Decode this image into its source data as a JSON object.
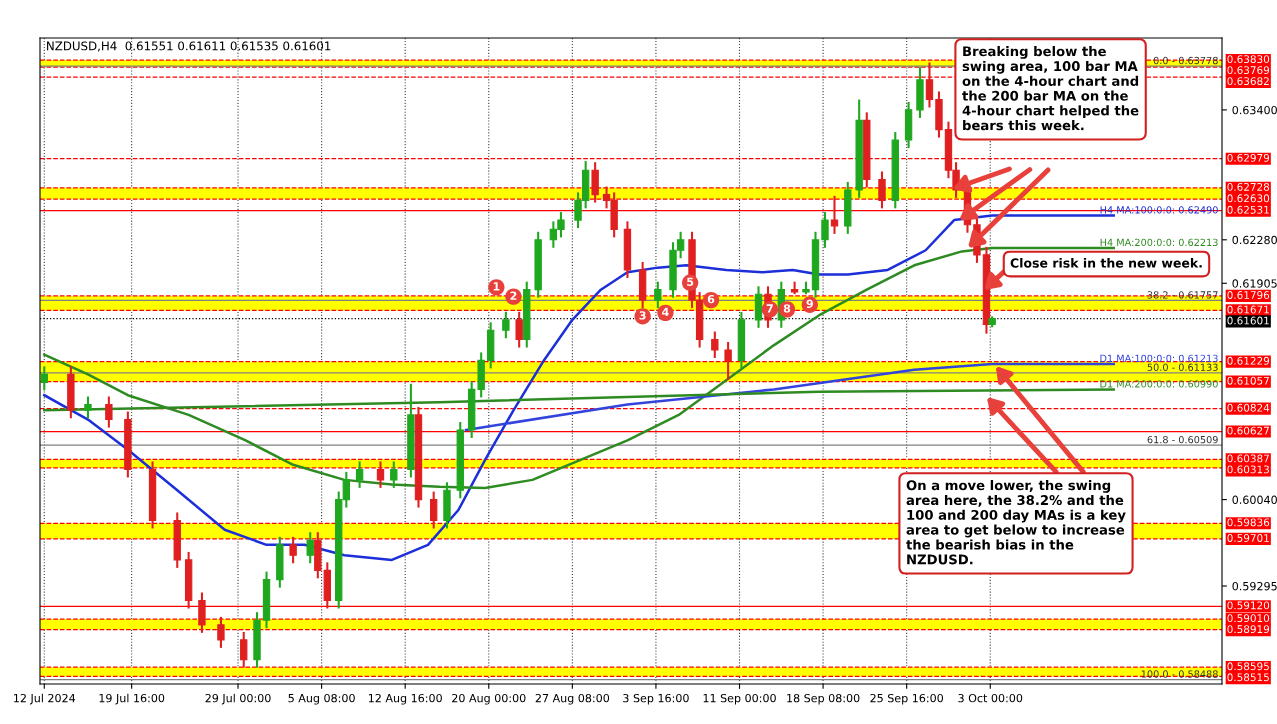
{
  "chart_data": {
    "type": "candlestick",
    "title": "NZDUSD,H4  0.61551 0.61611 0.61535 0.61601",
    "x": [
      "2024-07-12T00:00",
      "2024-07-14T08:00",
      "2024-07-15T20:00",
      "2024-07-17T16:00",
      "2024-07-19T08:00",
      "2024-07-21T12:00",
      "2024-07-23T16:00",
      "2024-07-24T16:00",
      "2024-07-25T20:00",
      "2024-07-27T12:00",
      "2024-07-29T12:00",
      "2024-07-30T16:00",
      "2024-07-31T12:00",
      "2024-08-01T16:00",
      "2024-08-02T20:00",
      "2024-08-04T08:00",
      "2024-08-05T00:00",
      "2024-08-05T20:00",
      "2024-08-06T20:00",
      "2024-08-07T12:00",
      "2024-08-08T16:00",
      "2024-08-10T12:00",
      "2024-08-11T16:00",
      "2024-08-13T04:00",
      "2024-08-13T20:00",
      "2024-08-15T04:00",
      "2024-08-16T08:00",
      "2024-08-17T12:00",
      "2024-08-18T12:00",
      "2024-08-19T08:00",
      "2024-08-20T04:00",
      "2024-08-21T12:00",
      "2024-08-22T16:00",
      "2024-08-23T08:00",
      "2024-08-24T08:00",
      "2024-08-25T16:00",
      "2024-08-26T08:00",
      "2024-08-27T20:00",
      "2024-08-28T12:00",
      "2024-08-29T08:00",
      "2024-08-30T08:00",
      "2024-08-31T00:00",
      "2024-09-01T04:00",
      "2024-09-02T12:00",
      "2024-09-03T20:00",
      "2024-09-05T04:00",
      "2024-09-05T20:00",
      "2024-09-06T20:00",
      "2024-09-07T12:00",
      "2024-09-08T20:00",
      "2024-09-10T00:00",
      "2024-09-11T04:00",
      "2024-09-12T16:00",
      "2024-09-13T12:00",
      "2024-09-14T16:00",
      "2024-09-15T20:00",
      "2024-09-16T20:00",
      "2024-09-17T16:00",
      "2024-09-18T12:00",
      "2024-09-19T08:00",
      "2024-09-20T12:00",
      "2024-09-21T12:00",
      "2024-09-22T04:00",
      "2024-09-23T12:00",
      "2024-09-24T16:00",
      "2024-09-25T20:00",
      "2024-09-26T20:00",
      "2024-09-27T16:00",
      "2024-09-28T12:00",
      "2024-09-29T08:00",
      "2024-09-30T00:00",
      "2024-10-01T00:00",
      "2024-10-01T20:00",
      "2024-10-02T16:00",
      "2024-10-03T04:00"
    ],
    "ohlc": [
      [
        0.6105,
        0.6118,
        0.6099,
        0.6112
      ],
      [
        0.6112,
        0.6118,
        0.6075,
        0.6081
      ],
      [
        0.6081,
        0.6092,
        0.6075,
        0.6086
      ],
      [
        0.6086,
        0.6092,
        0.6067,
        0.6073
      ],
      [
        0.6073,
        0.6079,
        0.6024,
        0.603
      ],
      [
        0.603,
        0.6036,
        0.598,
        0.5986
      ],
      [
        0.5986,
        0.5992,
        0.5946,
        0.5952
      ],
      [
        0.5952,
        0.5958,
        0.5911,
        0.5917
      ],
      [
        0.5917,
        0.5923,
        0.589,
        0.5896
      ],
      [
        0.5896,
        0.5902,
        0.5877,
        0.5883
      ],
      [
        0.5883,
        0.5889,
        0.586,
        0.5866
      ],
      [
        0.5866,
        0.5906,
        0.586,
        0.59
      ],
      [
        0.59,
        0.5941,
        0.5894,
        0.5935
      ],
      [
        0.5935,
        0.5971,
        0.5929,
        0.5965
      ],
      [
        0.5965,
        0.5971,
        0.595,
        0.5956
      ],
      [
        0.5956,
        0.5975,
        0.595,
        0.5969
      ],
      [
        0.5969,
        0.5975,
        0.5937,
        0.5943
      ],
      [
        0.5943,
        0.5949,
        0.5911,
        0.5917
      ],
      [
        0.5917,
        0.601,
        0.5911,
        0.6004
      ],
      [
        0.6004,
        0.6027,
        0.5998,
        0.6021
      ],
      [
        0.6021,
        0.6036,
        0.6015,
        0.603
      ],
      [
        0.603,
        0.6036,
        0.6015,
        0.6021
      ],
      [
        0.6021,
        0.6036,
        0.6015,
        0.603
      ],
      [
        0.603,
        0.6103,
        0.6024,
        0.6077
      ],
      [
        0.6077,
        0.6083,
        0.5998,
        0.6004
      ],
      [
        0.6004,
        0.601,
        0.598,
        0.5986
      ],
      [
        0.5986,
        0.6018,
        0.598,
        0.6012
      ],
      [
        0.6012,
        0.607,
        0.6006,
        0.6064
      ],
      [
        0.6064,
        0.6105,
        0.6058,
        0.6099
      ],
      [
        0.6099,
        0.613,
        0.6093,
        0.6124
      ],
      [
        0.6124,
        0.6156,
        0.6118,
        0.615
      ],
      [
        0.615,
        0.6165,
        0.6144,
        0.6159
      ],
      [
        0.6159,
        0.6165,
        0.6136,
        0.6142
      ],
      [
        0.6142,
        0.6191,
        0.6136,
        0.6185
      ],
      [
        0.6185,
        0.6234,
        0.6179,
        0.6228
      ],
      [
        0.6228,
        0.6243,
        0.6222,
        0.6237
      ],
      [
        0.6237,
        0.6251,
        0.6231,
        0.6245
      ],
      [
        0.6245,
        0.6268,
        0.6239,
        0.6262
      ],
      [
        0.6262,
        0.6295,
        0.6256,
        0.6288
      ],
      [
        0.6288,
        0.6294,
        0.6261,
        0.6267
      ],
      [
        0.6267,
        0.6273,
        0.6256,
        0.6262
      ],
      [
        0.6262,
        0.6268,
        0.6231,
        0.6237
      ],
      [
        0.6237,
        0.6243,
        0.6196,
        0.6202
      ],
      [
        0.6202,
        0.6208,
        0.617,
        0.6176
      ],
      [
        0.6176,
        0.6191,
        0.617,
        0.6185
      ],
      [
        0.6185,
        0.6225,
        0.6179,
        0.6219
      ],
      [
        0.6219,
        0.6234,
        0.6213,
        0.6228
      ],
      [
        0.6228,
        0.6234,
        0.617,
        0.6176
      ],
      [
        0.6176,
        0.6182,
        0.6136,
        0.6142
      ],
      [
        0.6142,
        0.6148,
        0.6127,
        0.6133
      ],
      [
        0.6133,
        0.6139,
        0.6108,
        0.6124
      ],
      [
        0.6124,
        0.6165,
        0.6118,
        0.6159
      ],
      [
        0.6159,
        0.6187,
        0.6153,
        0.6181
      ],
      [
        0.6181,
        0.6187,
        0.6153,
        0.6159
      ],
      [
        0.6159,
        0.6191,
        0.6153,
        0.6185
      ],
      [
        0.6185,
        0.6191,
        0.6182,
        0.6183
      ],
      [
        0.6183,
        0.6191,
        0.6182,
        0.6185
      ],
      [
        0.6185,
        0.6234,
        0.6179,
        0.6228
      ],
      [
        0.6228,
        0.6251,
        0.6222,
        0.6245
      ],
      [
        0.6245,
        0.6265,
        0.6234,
        0.624
      ],
      [
        0.624,
        0.6277,
        0.6234,
        0.6271
      ],
      [
        0.6271,
        0.6348,
        0.6265,
        0.6331
      ],
      [
        0.6331,
        0.6337,
        0.6274,
        0.628
      ],
      [
        0.628,
        0.6286,
        0.6256,
        0.6262
      ],
      [
        0.6262,
        0.632,
        0.6256,
        0.6314
      ],
      [
        0.6314,
        0.6346,
        0.6308,
        0.634
      ],
      [
        0.634,
        0.6376,
        0.6334,
        0.6366
      ],
      [
        0.6366,
        0.638,
        0.6343,
        0.6349
      ],
      [
        0.6349,
        0.6355,
        0.6317,
        0.6323
      ],
      [
        0.6323,
        0.6329,
        0.6282,
        0.6288
      ],
      [
        0.6288,
        0.6294,
        0.6265,
        0.6271
      ],
      [
        0.6271,
        0.6277,
        0.6235,
        0.6241
      ],
      [
        0.6241,
        0.6247,
        0.6209,
        0.6215
      ],
      [
        0.6215,
        0.6221,
        0.6148,
        0.6155
      ],
      [
        0.61551,
        0.61611,
        0.61535,
        0.61601
      ]
    ],
    "series": [
      {
        "name": "H4 MA:100:0:0: 0.62490",
        "type": "line",
        "color": "#1c2fd8",
        "x": [
          "2024-07-12T00:00",
          "2024-07-15T20:00",
          "2024-07-19T08:00",
          "2024-07-23T16:00",
          "2024-07-27T20:00",
          "2024-07-31T12:00",
          "2024-08-03T20:00",
          "2024-08-07T08:00",
          "2024-08-11T12:00",
          "2024-08-14T16:00",
          "2024-08-17T08:00",
          "2024-08-19T16:00",
          "2024-08-22T04:00",
          "2024-08-24T20:00",
          "2024-08-27T08:00",
          "2024-08-29T20:00",
          "2024-09-01T04:00",
          "2024-09-03T20:00",
          "2024-09-06T08:00",
          "2024-09-09T20:00",
          "2024-09-13T00:00",
          "2024-09-15T16:00",
          "2024-09-18T00:00",
          "2024-09-20T12:00",
          "2024-09-24T00:00",
          "2024-09-27T08:00",
          "2024-09-29T20:00",
          "2024-10-03T04:00",
          "2024-10-13T20:00"
        ],
        "values": [
          0.6094,
          0.6073,
          0.6047,
          0.6012,
          0.5978,
          0.5965,
          0.5965,
          0.5956,
          0.5952,
          0.5965,
          0.5995,
          0.6038,
          0.6081,
          0.6124,
          0.6159,
          0.6185,
          0.62,
          0.6204,
          0.6206,
          0.6202,
          0.62,
          0.6202,
          0.6198,
          0.6198,
          0.6202,
          0.6219,
          0.6245,
          0.6249,
          0.6249
        ]
      },
      {
        "name": "H4 MA:200:0:0: 0.62213",
        "type": "line",
        "color": "#2e8b22",
        "x": [
          "2024-07-12T00:00",
          "2024-07-15T20:00",
          "2024-07-19T08:00",
          "2024-07-24T16:00",
          "2024-07-29T16:00",
          "2024-08-02T20:00",
          "2024-08-07T08:00",
          "2024-08-11T12:00",
          "2024-08-15T16:00",
          "2024-08-19T16:00",
          "2024-08-23T20:00",
          "2024-08-28T00:00",
          "2024-09-01T04:00",
          "2024-09-05T16:00",
          "2024-09-09T20:00",
          "2024-09-14T00:00",
          "2024-09-18T00:00",
          "2024-09-22T04:00",
          "2024-09-26T08:00",
          "2024-09-30T12:00",
          "2024-10-03T04:00",
          "2024-10-13T20:00"
        ],
        "values": [
          0.6129,
          0.6112,
          0.6094,
          0.6077,
          0.6055,
          0.6034,
          0.6021,
          0.6017,
          0.6015,
          0.6014,
          0.6021,
          0.6038,
          0.6055,
          0.6077,
          0.6107,
          0.6137,
          0.6163,
          0.6185,
          0.6206,
          0.6218,
          0.6221,
          0.6221
        ]
      },
      {
        "name": "D1 MA:100:0:0: 0.61213",
        "type": "line",
        "color": "#3344dd",
        "x": [
          "2024-08-18T00:00",
          "2024-09-01T04:00",
          "2024-09-14T00:00",
          "2024-09-26T08:00",
          "2024-10-03T04:00",
          "2024-10-13T20:00"
        ],
        "values": [
          0.6064,
          0.6086,
          0.6099,
          0.6116,
          0.6121,
          0.6121
        ]
      },
      {
        "name": "D1 MA:200:0:0: 0.60990",
        "type": "line",
        "color": "#2e8b22",
        "x": [
          "2024-07-12T00:00",
          "2024-08-15T16:00",
          "2024-09-18T00:00",
          "2024-10-13T20:00"
        ],
        "values": [
          0.6081,
          0.6088,
          0.6097,
          0.6099
        ]
      }
    ],
    "xlim": [
      "2024-07-11T15:00",
      "2024-10-23T08:00"
    ],
    "xticks": [
      {
        "value": "2024-07-12",
        "label": "12 Jul 2024"
      },
      {
        "value": "2024-07-19T16:00",
        "label": "19 Jul 16:00"
      },
      {
        "value": "2024-07-29T00:00",
        "label": "29 Jul 00:00"
      },
      {
        "value": "2024-08-05T08:00",
        "label": "5 Aug 08:00"
      },
      {
        "value": "2024-08-12T16:00",
        "label": "12 Aug 16:00"
      },
      {
        "value": "2024-08-20T00:00",
        "label": "20 Aug 00:00"
      },
      {
        "value": "2024-08-27T08:00",
        "label": "27 Aug 08:00"
      },
      {
        "value": "2024-09-03T16:00",
        "label": "3 Sep 16:00"
      },
      {
        "value": "2024-09-11T00:00",
        "label": "11 Sep 00:00"
      },
      {
        "value": "2024-09-18T08:00",
        "label": "18 Sep 08:00"
      },
      {
        "value": "2024-09-25T16:00",
        "label": "25 Sep 16:00"
      },
      {
        "value": "2024-10-03T00:00",
        "label": "3 Oct 00:00"
      }
    ],
    "ylim": [
      0.5845,
      0.6402
    ],
    "yticks": [
      {
        "value": 0.634,
        "label": "0.63400"
      },
      {
        "value": 0.6228,
        "label": "0.62280"
      },
      {
        "value": 0.61905,
        "label": "0.61905"
      },
      {
        "value": 0.6004,
        "label": "0.60040"
      },
      {
        "value": 0.59295,
        "label": "0.59295"
      }
    ],
    "grid": "x",
    "bands": [
      {
        "axis": "y",
        "from": 0.63769,
        "to": 0.6383,
        "color": "#ffff00"
      },
      {
        "axis": "y",
        "from": 0.6263,
        "to": 0.62728,
        "color": "#ffff00"
      },
      {
        "axis": "y",
        "from": 0.61671,
        "to": 0.61796,
        "color": "#ffff00"
      },
      {
        "axis": "y",
        "from": 0.61057,
        "to": 0.61229,
        "color": "#ffff00"
      },
      {
        "axis": "y",
        "from": 0.60313,
        "to": 0.60387,
        "color": "#ffff00"
      },
      {
        "axis": "y",
        "from": 0.59701,
        "to": 0.59836,
        "color": "#ffff00"
      },
      {
        "axis": "y",
        "from": 0.58919,
        "to": 0.5901,
        "color": "#ffff00"
      },
      {
        "axis": "y",
        "from": 0.58515,
        "to": 0.58595,
        "color": "#ffff00"
      }
    ],
    "ref_lines": [
      {
        "axis": "y",
        "value": 0.6383,
        "label": "0.63830",
        "color": "#ff0000",
        "line_style": "dashed"
      },
      {
        "axis": "y",
        "value": 0.63769,
        "label": "0.63769",
        "color": "#ff0000",
        "line_style": "dashed"
      },
      {
        "axis": "y",
        "value": 0.63682,
        "label": "0.63682",
        "color": "#ff0000",
        "line_style": "dashed"
      },
      {
        "axis": "y",
        "value": 0.62979,
        "label": "0.62979",
        "color": "#ff0000",
        "line_style": "dashed"
      },
      {
        "axis": "y",
        "value": 0.62728,
        "label": "0.62728",
        "color": "#ff0000",
        "line_style": "dashed"
      },
      {
        "axis": "y",
        "value": 0.6263,
        "label": "0.62630",
        "color": "#ff0000",
        "line_style": "dashed"
      },
      {
        "axis": "y",
        "value": 0.62531,
        "label": "0.62531",
        "color": "#ff0000",
        "line_style": "solid"
      },
      {
        "axis": "y",
        "value": 0.61796,
        "label": "0.61796",
        "color": "#ff0000",
        "line_style": "dashed"
      },
      {
        "axis": "y",
        "value": 0.61671,
        "label": "0.61671",
        "color": "#ff0000",
        "line_style": "dashed"
      },
      {
        "axis": "y",
        "value": 0.61601,
        "label": "0.61601",
        "color": "#000000",
        "line_style": "dotted"
      },
      {
        "axis": "y",
        "value": 0.61229,
        "label": "0.61229",
        "color": "#ff0000",
        "line_style": "dashed"
      },
      {
        "axis": "y",
        "value": 0.61057,
        "label": "0.61057",
        "color": "#ff0000",
        "line_style": "dashed"
      },
      {
        "axis": "y",
        "value": 0.60824,
        "label": "0.60824",
        "color": "#ff0000",
        "line_style": "dashed"
      },
      {
        "axis": "y",
        "value": 0.60627,
        "label": "0.60627",
        "color": "#ff0000",
        "line_style": "solid"
      },
      {
        "axis": "y",
        "value": 0.60387,
        "label": "0.60387",
        "color": "#ff0000",
        "line_style": "dashed"
      },
      {
        "axis": "y",
        "value": 0.60313,
        "label": "0.60313",
        "color": "#ff0000",
        "line_style": "dashed"
      },
      {
        "axis": "y",
        "value": 0.59836,
        "label": "0.59836",
        "color": "#ff0000",
        "line_style": "dashed"
      },
      {
        "axis": "y",
        "value": 0.59701,
        "label": "0.59701",
        "color": "#ff0000",
        "line_style": "dashed"
      },
      {
        "axis": "y",
        "value": 0.5912,
        "label": "0.59120",
        "color": "#ff0000",
        "line_style": "solid"
      },
      {
        "axis": "y",
        "value": 0.5901,
        "label": "0.59010",
        "color": "#ff0000",
        "line_style": "dashed"
      },
      {
        "axis": "y",
        "value": 0.58919,
        "label": "0.58919",
        "color": "#ff0000",
        "line_style": "dashed"
      },
      {
        "axis": "y",
        "value": 0.58595,
        "label": "0.58595",
        "color": "#ff0000",
        "line_style": "dashed"
      },
      {
        "axis": "y",
        "value": 0.58515,
        "label": "0.58515",
        "color": "#ff0000",
        "line_style": "dashed"
      },
      {
        "axis": "y",
        "value": 0.63778,
        "color": "#808080",
        "line_style": "solid"
      },
      {
        "axis": "y",
        "value": 0.61757,
        "color": "#808080",
        "line_style": "solid"
      },
      {
        "axis": "y",
        "value": 0.61133,
        "color": "#808080",
        "line_style": "solid"
      },
      {
        "axis": "y",
        "value": 0.60509,
        "color": "#808080",
        "line_style": "solid"
      },
      {
        "axis": "y",
        "value": 0.58488,
        "color": "#808080",
        "line_style": "solid"
      }
    ],
    "annotations": [
      "Breaking below the swing area, 100 bar MA on the 4-hour chart and the 200 bar MA on the 4-hour chart helped the bears this week.",
      "Close risk in the new week.",
      {
        "text": "On a move lower, the swing area here, the 38.2% and the 100 and 200 day MAs is a key area to get below to increase the bearish bias in the NZDUSD.",
        "x": "2024-10-03T08:00",
        "y": 0.6121
      },
      {
        "text": "0.0 - 0.63778",
        "y": 0.63778
      },
      {
        "text": "38.2 - 0.61757",
        "y": 0.61757
      },
      {
        "text": "50.0 - 0.61133",
        "y": 0.61133
      },
      {
        "text": "61.8 - 0.60509",
        "y": 0.60509
      },
      {
        "text": "100.0 - 0.58488",
        "y": 0.58488
      },
      {
        "text": "1",
        "x": "2024-08-20T16:00",
        "y": 0.6187
      },
      {
        "text": "2",
        "x": "2024-08-22T04:00",
        "y": 0.6179
      },
      {
        "text": "3",
        "x": "2024-09-02T12:00",
        "y": 0.6162
      },
      {
        "text": "4",
        "x": "2024-09-04T12:00",
        "y": 0.6165
      },
      {
        "text": "5",
        "x": "2024-09-06T16:00",
        "y": 0.6191
      },
      {
        "text": "6",
        "x": "2024-09-08T12:00",
        "y": 0.6176
      },
      {
        "text": "7",
        "x": "2024-09-13T16:00",
        "y": 0.6168
      },
      {
        "text": "8",
        "x": "2024-09-15T04:00",
        "y": 0.6168
      },
      {
        "text": "9",
        "x": "2024-09-17T04:00",
        "y": 0.6172
      }
    ]
  }
}
